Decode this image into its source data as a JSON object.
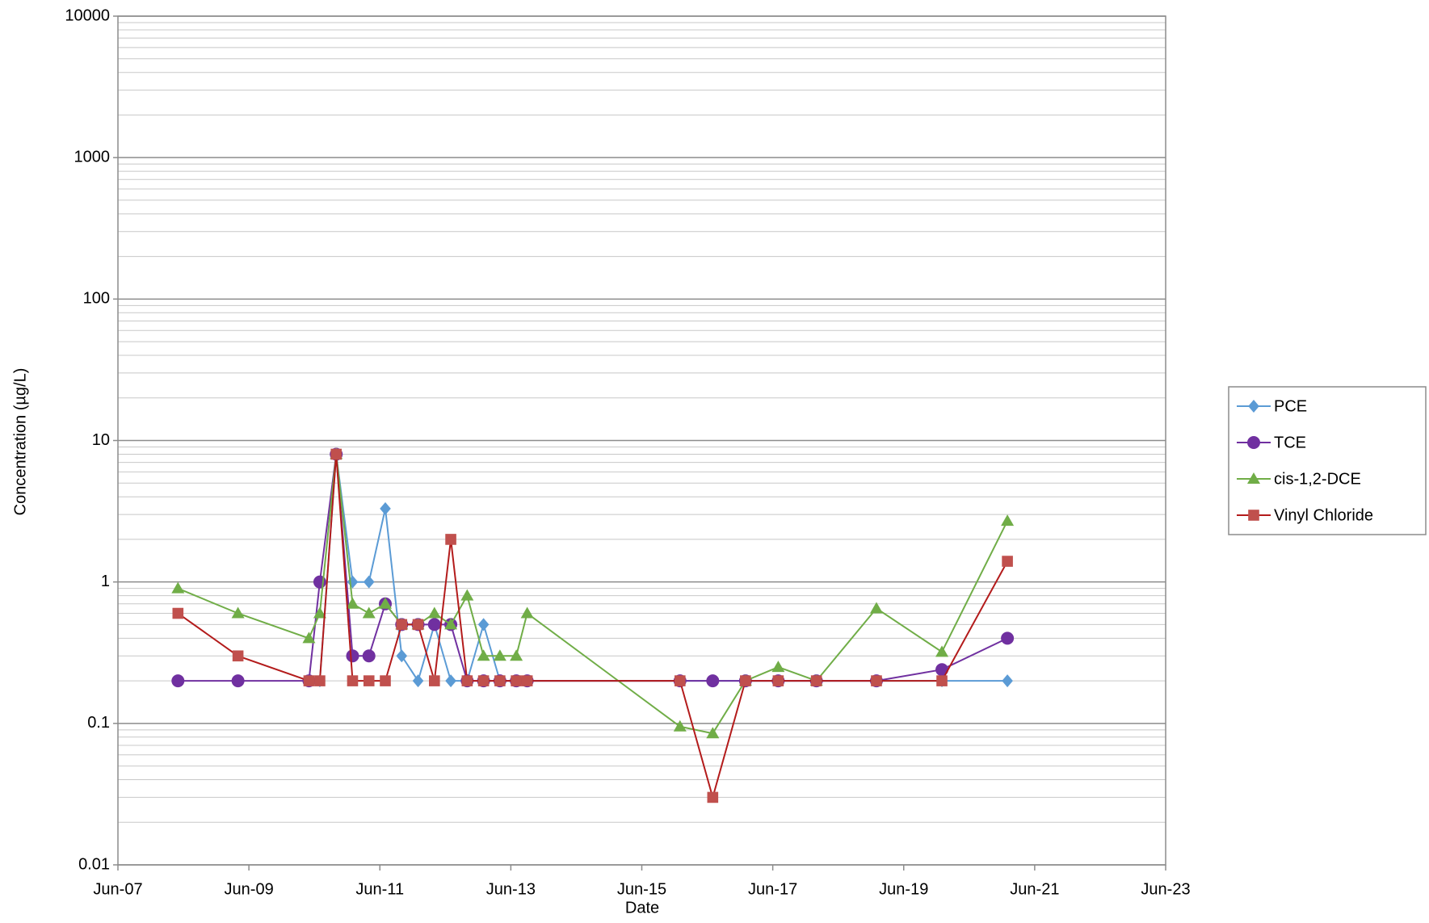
{
  "chart_data": {
    "type": "line",
    "xlabel": "Date",
    "ylabel": "Concentration (µg/L)",
    "log_y": true,
    "grid": true,
    "minor_grid": true,
    "legend": "right",
    "xlim": [
      "2007-06",
      "2023-06"
    ],
    "xticks": [
      {
        "value": "2007-06",
        "label": "Jun-07"
      },
      {
        "value": "2009-06",
        "label": "Jun-09"
      },
      {
        "value": "2011-06",
        "label": "Jun-11"
      },
      {
        "value": "2013-06",
        "label": "Jun-13"
      },
      {
        "value": "2015-06",
        "label": "Jun-15"
      },
      {
        "value": "2017-06",
        "label": "Jun-17"
      },
      {
        "value": "2019-06",
        "label": "Jun-19"
      },
      {
        "value": "2021-06",
        "label": "Jun-21"
      },
      {
        "value": "2023-06",
        "label": "Jun-23"
      }
    ],
    "ylim": [
      0.01,
      10000
    ],
    "yticks": [
      0.01,
      0.1,
      1,
      10,
      100,
      1000,
      10000
    ],
    "x": [
      "2008-05",
      "2009-04",
      "2010-05",
      "2010-07",
      "2010-10",
      "2011-01",
      "2011-04",
      "2011-07",
      "2011-10",
      "2012-01",
      "2012-04",
      "2012-07",
      "2012-10",
      "2013-01",
      "2013-04",
      "2013-07",
      "2013-09",
      "2016-01",
      "2016-07",
      "2017-01",
      "2017-07",
      "2018-02",
      "2019-01",
      "2020-01",
      "2021-01"
    ],
    "series": [
      {
        "name": "PCE",
        "color": "#5b9bd5",
        "line_color": "#5b9bd5",
        "marker": "diamond",
        "values": [
          null,
          null,
          0.2,
          0.2,
          8,
          1,
          1,
          3.3,
          0.3,
          0.2,
          0.5,
          0.2,
          0.2,
          0.5,
          0.2,
          0.2,
          0.2,
          0.2,
          0.2,
          0.2,
          0.2,
          0.2,
          0.2,
          0.2,
          0.2
        ]
      },
      {
        "name": "TCE",
        "color": "#7030a0",
        "line_color": "#7030a0",
        "marker": "circle",
        "values": [
          0.2,
          0.2,
          0.2,
          1,
          8,
          0.3,
          0.3,
          0.7,
          0.5,
          0.5,
          0.5,
          0.5,
          0.2,
          0.2,
          0.2,
          0.2,
          0.2,
          0.2,
          0.2,
          0.2,
          0.2,
          0.2,
          0.2,
          0.24,
          0.4
        ]
      },
      {
        "name": "cis-1,2-DCE",
        "color": "#70ad47",
        "line_color": "#70ad47",
        "marker": "triangle",
        "values": [
          0.9,
          0.6,
          0.4,
          0.6,
          8,
          0.7,
          0.6,
          0.7,
          0.5,
          0.5,
          0.6,
          0.5,
          0.8,
          0.3,
          0.3,
          0.3,
          0.6,
          0.095,
          0.085,
          0.2,
          0.25,
          0.2,
          0.65,
          0.32,
          2.7
        ]
      },
      {
        "name": "Vinyl Chloride",
        "color": "#c0504d",
        "line_color": "#b31b1b",
        "marker": "square",
        "values": [
          0.6,
          0.3,
          0.2,
          0.2,
          8,
          0.2,
          0.2,
          0.2,
          0.5,
          0.5,
          0.2,
          2,
          0.2,
          0.2,
          0.2,
          0.2,
          0.2,
          0.2,
          0.03,
          0.2,
          0.2,
          0.2,
          0.2,
          0.2,
          1.4
        ]
      }
    ]
  }
}
